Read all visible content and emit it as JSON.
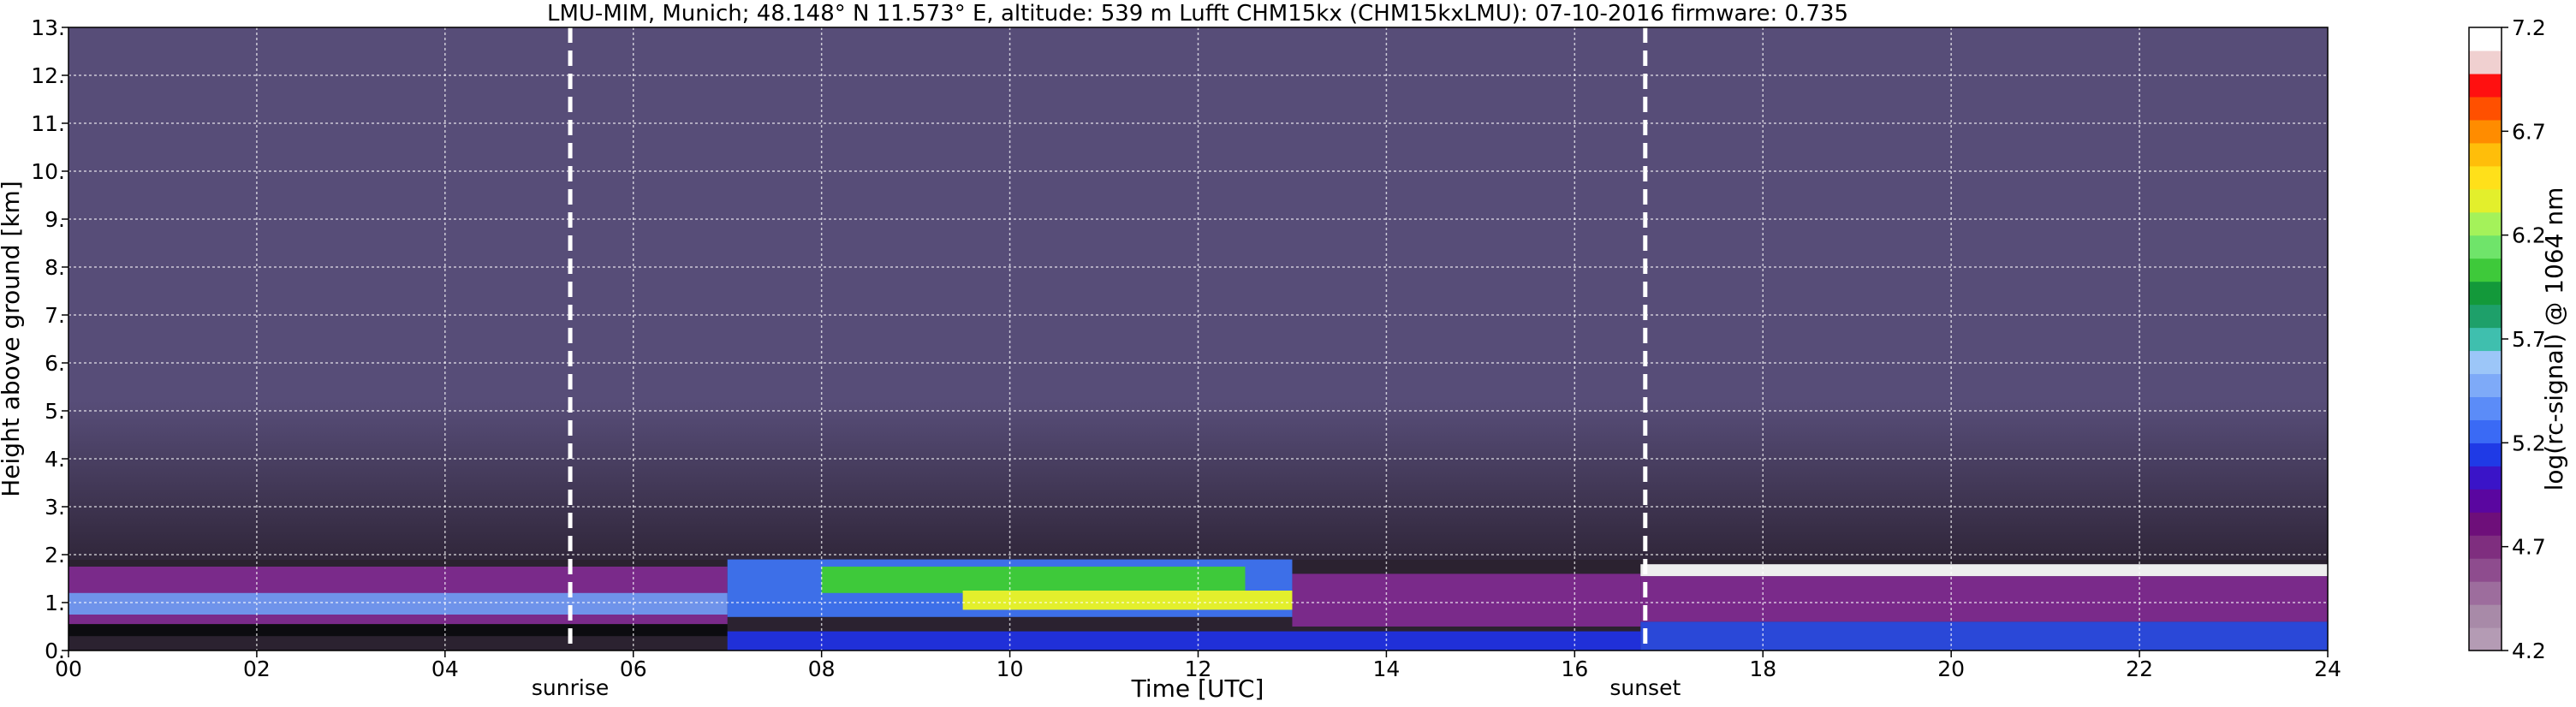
{
  "chart_data": {
    "type": "heatmap",
    "title": "LMU-MIM, Munich; 48.148° N 11.573° E, altitude: 539 m    Lufft CHM15kx (CHM15kxLMU): 07-10-2016    firmware: 0.735",
    "xlabel": "Time [UTC]",
    "ylabel": "Height above ground [km]",
    "xlim": [
      0,
      24
    ],
    "ylim": [
      0,
      13
    ],
    "x_ticks": [
      "00",
      "02",
      "04",
      "06",
      "08",
      "10",
      "12",
      "14",
      "16",
      "18",
      "20",
      "22",
      "24"
    ],
    "x_tick_values": [
      0,
      2,
      4,
      6,
      8,
      10,
      12,
      14,
      16,
      18,
      20,
      22,
      24
    ],
    "y_ticks": [
      "0.",
      "1.",
      "2.",
      "3.",
      "4.",
      "5.",
      "6.",
      "7.",
      "8.",
      "9.",
      "10.",
      "11.",
      "12.",
      "13."
    ],
    "y_tick_values": [
      0,
      1,
      2,
      3,
      4,
      5,
      6,
      7,
      8,
      9,
      10,
      11,
      12,
      13
    ],
    "grid": true,
    "annotations": [
      {
        "text": "sunrise",
        "x": 5.33
      },
      {
        "text": "sunset",
        "x": 16.75
      }
    ],
    "colorbar": {
      "label": "log(rc-signal) @ 1064 nm",
      "range": [
        4.2,
        7.2
      ],
      "ticks": [
        "4.2",
        "4.7",
        "5.2",
        "5.7",
        "6.2",
        "6.7",
        "7.2"
      ],
      "tick_values": [
        4.2,
        4.7,
        5.2,
        5.7,
        6.2,
        6.7,
        7.2
      ],
      "colors": [
        "#b49bb4",
        "#a88aa8",
        "#9d6d9d",
        "#8e4c8e",
        "#7f2e7f",
        "#6e0f7a",
        "#5a06a0",
        "#3a14c8",
        "#1f3ae6",
        "#3a6af5",
        "#5b8cf8",
        "#7eaaf8",
        "#9cc6f8",
        "#3fbfae",
        "#1ea06a",
        "#13993a",
        "#3ec93a",
        "#6fe46a",
        "#a4f25a",
        "#e3ef2c",
        "#ffe01a",
        "#ffbe0a",
        "#ff8c00",
        "#ff5000",
        "#ff1010",
        "#f0d0d0",
        "#ffffff"
      ]
    }
  }
}
